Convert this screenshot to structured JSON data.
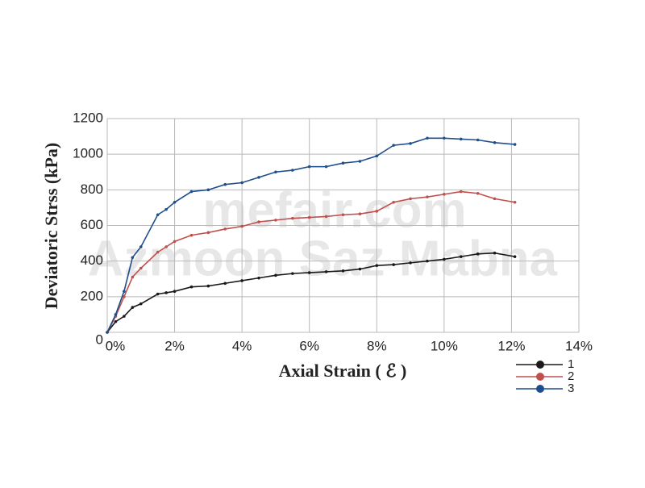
{
  "chart_data": {
    "type": "line",
    "x_label": "Axial Strain ( ℰ )",
    "y_label": "Deviatoric Strss (kPa)",
    "watermarks": [
      "mefair.com",
      "Azmoon Saz Mabna"
    ],
    "x": [
      0,
      0.25,
      0.5,
      0.75,
      1,
      1.5,
      1.75,
      2,
      2.5,
      3,
      3.5,
      4,
      4.5,
      5,
      5.5,
      6,
      6.5,
      7,
      7.5,
      8,
      8.5,
      9,
      9.5,
      10,
      10.5,
      11,
      11.5,
      12.1
    ],
    "series": [
      {
        "name": "1",
        "color": "#1a1a1a",
        "values": [
          0,
          60,
          90,
          140,
          160,
          215,
          222,
          230,
          255,
          260,
          275,
          290,
          305,
          320,
          330,
          335,
          340,
          345,
          355,
          375,
          380,
          390,
          400,
          410,
          425,
          440,
          445,
          425
        ]
      },
      {
        "name": "2",
        "color": "#c0504d",
        "values": [
          0,
          90,
          200,
          310,
          360,
          450,
          480,
          510,
          545,
          560,
          580,
          595,
          620,
          630,
          640,
          645,
          650,
          660,
          665,
          680,
          730,
          750,
          760,
          775,
          790,
          780,
          750,
          730
        ]
      },
      {
        "name": "3",
        "color": "#1f4e8c",
        "values": [
          0,
          100,
          230,
          420,
          480,
          660,
          690,
          730,
          790,
          800,
          830,
          840,
          870,
          900,
          910,
          930,
          930,
          950,
          960,
          990,
          1050,
          1060,
          1090,
          1090,
          1085,
          1080,
          1065,
          1055
        ]
      }
    ],
    "xlim": [
      0,
      14
    ],
    "ylim": [
      0,
      1200
    ],
    "xticks": [
      {
        "value": 0,
        "label": "0%"
      },
      {
        "value": 2,
        "label": "2%"
      },
      {
        "value": 4,
        "label": "4%"
      },
      {
        "value": 6,
        "label": "6%"
      },
      {
        "value": 8,
        "label": "8%"
      },
      {
        "value": 10,
        "label": "10%"
      },
      {
        "value": 12,
        "label": "12%"
      },
      {
        "value": 14,
        "label": "14%"
      }
    ],
    "yticks": [
      0,
      200,
      400,
      600,
      800,
      1000,
      1200
    ],
    "grid": true,
    "legend": "bottom-right"
  }
}
